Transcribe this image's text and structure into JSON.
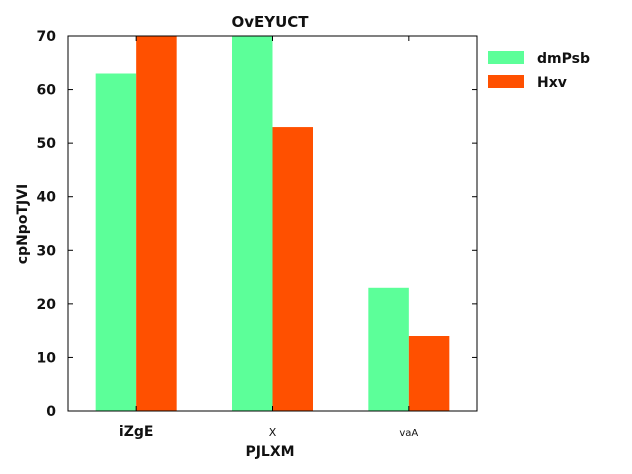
{
  "chart_data": {
    "type": "bar",
    "title": "OvEYUCT",
    "xlabel": "PJLXM",
    "ylabel": "cpNpoTJVI",
    "categories": [
      "iZgE",
      "X",
      "vaA"
    ],
    "series": [
      {
        "name": "dmPsb",
        "values": [
          63,
          70,
          23
        ],
        "color": "#5cff99"
      },
      {
        "name": "Hxv",
        "values": [
          70,
          53,
          14
        ],
        "color": "#ff5000"
      }
    ],
    "ylim": [
      0,
      70
    ],
    "yticks": [
      0,
      10,
      20,
      30,
      40,
      50,
      60,
      70
    ],
    "legend_position": "outside-top-right",
    "grid": false
  }
}
